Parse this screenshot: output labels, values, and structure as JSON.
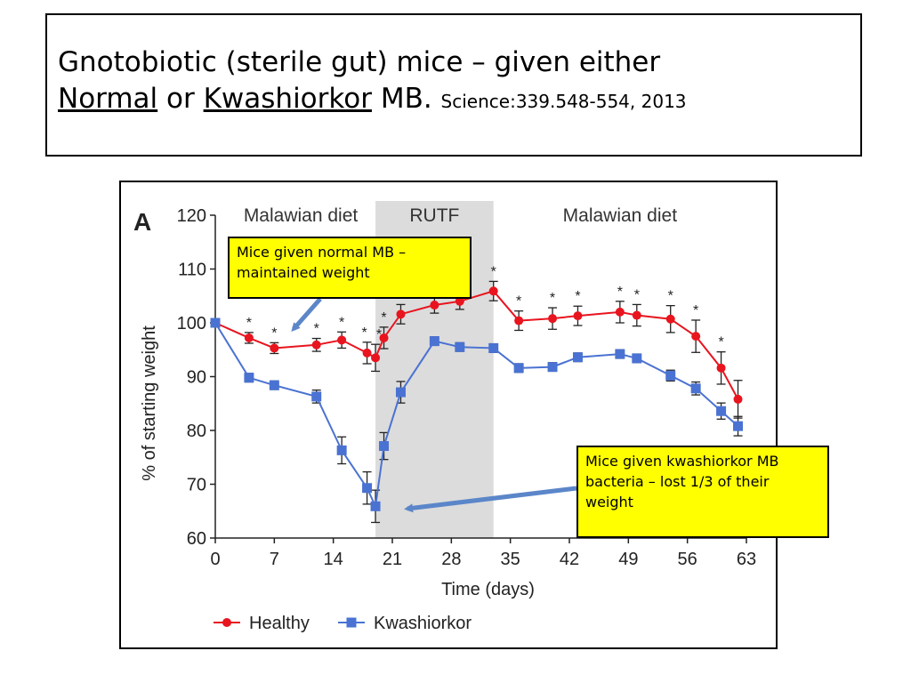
{
  "slide": {
    "title_line1": "Gnotobiotic (sterile gut) mice – given either",
    "title_normal": "Normal",
    "title_or": " or ",
    "title_kwash": "Kwashiorkor",
    "title_mb": " MB. ",
    "title_cite": "Science:339.548-554, 2013"
  },
  "callouts": {
    "normal": "Mice given normal MB – maintained weight",
    "kwashiorkor": "Mice given kwashiorkor MB bacteria – lost 1/3 of their weight"
  },
  "colors": {
    "healthy": "#e8141e",
    "kwashiorkor": "#4a72d2",
    "rutf_band": "#dcdcdc",
    "arrow": "#5b86c9",
    "callout_bg": "#ffff00"
  },
  "chart_data": {
    "type": "line",
    "panel_label": "A",
    "xlabel": "Time (days)",
    "ylabel": "% of starting weight",
    "xlim": [
      0,
      63
    ],
    "ylim": [
      60,
      120
    ],
    "xticks": [
      0,
      7,
      14,
      21,
      28,
      35,
      42,
      49,
      56,
      63
    ],
    "yticks": [
      60,
      70,
      80,
      90,
      100,
      110,
      120
    ],
    "grid": false,
    "legend": "bottom",
    "phases": [
      {
        "label": "Malawian diet",
        "start": 0,
        "end": 19
      },
      {
        "label": "RUTF",
        "start": 19,
        "end": 33,
        "shaded": true
      },
      {
        "label": "Malawian diet",
        "start": 33,
        "end": 63
      }
    ],
    "series": [
      {
        "name": "Healthy",
        "color": "#e8141e",
        "marker": "circle",
        "x": [
          0,
          4,
          7,
          12,
          15,
          18,
          19,
          20,
          22,
          26,
          29,
          33,
          36,
          40,
          43,
          48,
          50,
          54,
          57,
          60,
          62
        ],
        "y": [
          100,
          97.2,
          95.3,
          95.9,
          96.8,
          94.4,
          93.5,
          97.2,
          101.6,
          103.3,
          104.0,
          105.9,
          100.4,
          100.8,
          101.3,
          102.0,
          101.4,
          100.7,
          97.5,
          91.6,
          85.8
        ],
        "err": [
          0,
          1.0,
          1.0,
          1.2,
          1.5,
          2.0,
          2.5,
          2.0,
          1.8,
          1.5,
          1.5,
          1.8,
          1.8,
          2.0,
          1.8,
          2.0,
          2.0,
          2.5,
          3.0,
          3.0,
          3.5
        ]
      },
      {
        "name": "Kwashiorkor",
        "color": "#4a72d2",
        "marker": "square",
        "x": [
          0,
          4,
          7,
          12,
          15,
          18,
          19,
          20,
          22,
          26,
          29,
          33,
          36,
          40,
          43,
          48,
          50,
          54,
          57,
          60,
          62
        ],
        "y": [
          100,
          89.8,
          88.4,
          86.3,
          76.3,
          69.3,
          65.9,
          77.1,
          87.1,
          96.6,
          95.5,
          95.3,
          91.6,
          91.8,
          93.6,
          94.2,
          93.4,
          90.2,
          87.8,
          83.6,
          80.8
        ],
        "err": [
          0,
          0.8,
          0.8,
          1.2,
          2.5,
          3.0,
          3.0,
          2.5,
          2.0,
          0.8,
          0.8,
          0.8,
          0.8,
          0.8,
          0.8,
          0.8,
          0.8,
          1.0,
          1.2,
          1.5,
          1.8
        ]
      }
    ],
    "significance_marks": [
      {
        "x": 4,
        "text": "*"
      },
      {
        "x": 7,
        "text": "*"
      },
      {
        "x": 12,
        "text": "*"
      },
      {
        "x": 15,
        "text": "*"
      },
      {
        "x": 18,
        "text": "*"
      },
      {
        "x": 19,
        "text": "*"
      },
      {
        "x": 20,
        "text": "*"
      },
      {
        "x": 33,
        "text": "*"
      },
      {
        "x": 36,
        "text": "*"
      },
      {
        "x": 40,
        "text": "*"
      },
      {
        "x": 43,
        "text": "*"
      },
      {
        "x": 48,
        "text": "*"
      },
      {
        "x": 50,
        "text": "*"
      },
      {
        "x": 54,
        "text": "*"
      },
      {
        "x": 57,
        "text": "*"
      },
      {
        "x": 60,
        "text": "*"
      }
    ]
  }
}
